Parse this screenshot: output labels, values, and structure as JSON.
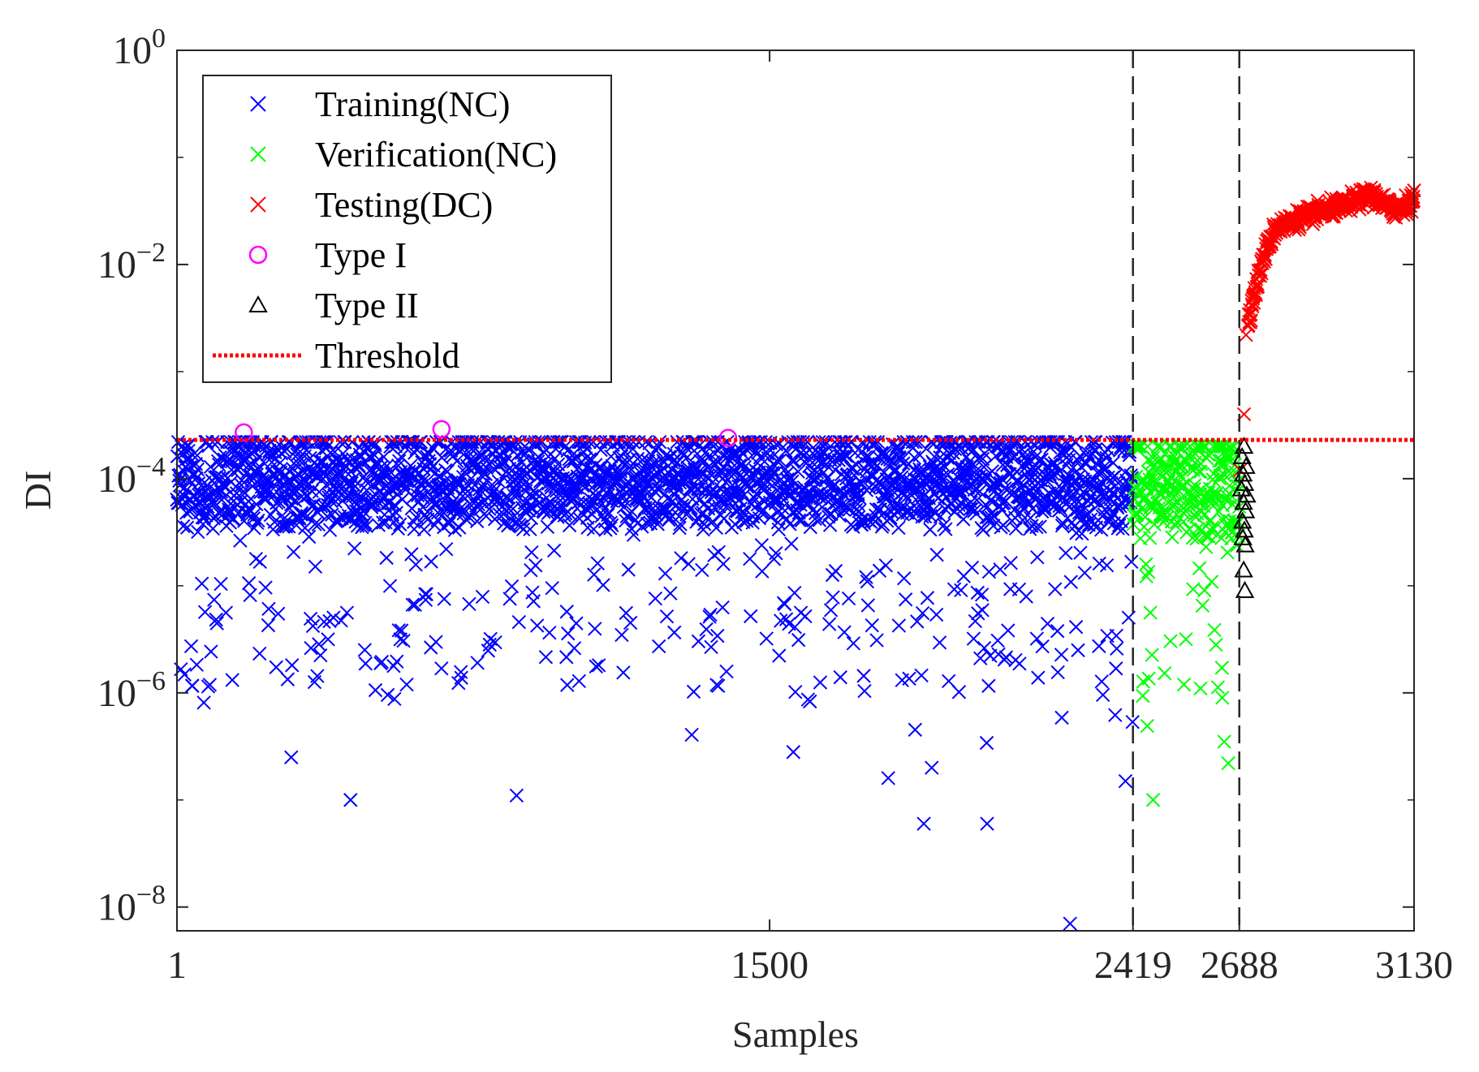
{
  "chart_data": {
    "type": "scatter",
    "title": "",
    "xlabel": "Samples",
    "ylabel": "DI",
    "yscale": "log",
    "xlim": [
      1,
      3130
    ],
    "ylim": [
      6e-09,
      1
    ],
    "xticks": [
      1,
      1500,
      2419,
      2688,
      3130
    ],
    "xtick_labels": [
      "1",
      "1500",
      "2419",
      "2688",
      "3130"
    ],
    "yticks": [
      1e-08,
      1e-06,
      0.0001,
      0.01,
      1
    ],
    "ytick_labels": [
      {
        "base": "10",
        "exp": "−8"
      },
      {
        "base": "10",
        "exp": "−6"
      },
      {
        "base": "10",
        "exp": "−4"
      },
      {
        "base": "10",
        "exp": "−2"
      },
      {
        "base": "10",
        "exp": "0"
      }
    ],
    "threshold": 0.00023,
    "boundaries": [
      2419,
      2688
    ],
    "legend": {
      "location": "top-left",
      "entries": [
        {
          "label": "Training(NC)",
          "marker": "x",
          "color": "#0000ff"
        },
        {
          "label": "Verification(NC)",
          "marker": "x",
          "color": "#00ff00"
        },
        {
          "label": "Testing(DC)",
          "marker": "x",
          "color": "#ff0000"
        },
        {
          "label": "Type I",
          "marker": "circle",
          "color": "#ff00ff"
        },
        {
          "label": "Type II",
          "marker": "triangle",
          "color": "#000000"
        },
        {
          "label": "Threshold",
          "marker": "dotted-line",
          "color": "#ff0000"
        }
      ]
    },
    "series": [
      {
        "name": "Training(NC)",
        "x_range": [
          1,
          2419
        ],
        "typical_range": [
          1e-05,
          0.00022
        ],
        "median": 8e-05,
        "min_observed": 7e-09,
        "notable_low_points": [
          {
            "x": 2260,
            "y": 7e-09
          },
          {
            "x": 440,
            "y": 1e-07
          },
          {
            "x": 860,
            "y": 1.1e-07
          },
          {
            "x": 1890,
            "y": 6e-08
          },
          {
            "x": 2050,
            "y": 6e-08
          },
          {
            "x": 2400,
            "y": 1.5e-07
          },
          {
            "x": 290,
            "y": 2.5e-07
          },
          {
            "x": 1560,
            "y": 2.8e-07
          },
          {
            "x": 1800,
            "y": 1.6e-07
          },
          {
            "x": 1910,
            "y": 2e-07
          }
        ]
      },
      {
        "name": "Verification(NC)",
        "x_range": [
          2420,
          2688
        ],
        "typical_range": [
          1e-05,
          0.0002
        ],
        "median": 7e-05,
        "notable_low_points": [
          {
            "x": 2470,
            "y": 1e-07
          },
          {
            "x": 2660,
            "y": 2.2e-07
          },
          {
            "x": 2650,
            "y": 3.5e-07
          },
          {
            "x": 2645,
            "y": 9e-07
          },
          {
            "x": 2590,
            "y": 1.1e-06
          }
        ]
      },
      {
        "name": "Testing(DC)",
        "x_range": [
          2689,
          3130
        ],
        "early_points": [
          {
            "x": 2690,
            "y": 0.00012
          },
          {
            "x": 2700,
            "y": 0.0004
          },
          {
            "x": 2705,
            "y": 0.0022
          }
        ],
        "trend": [
          {
            "x": 2710,
            "y": 0.003
          },
          {
            "x": 2730,
            "y": 0.006
          },
          {
            "x": 2750,
            "y": 0.012
          },
          {
            "x": 2780,
            "y": 0.022
          },
          {
            "x": 2850,
            "y": 0.028
          },
          {
            "x": 2950,
            "y": 0.035
          },
          {
            "x": 3020,
            "y": 0.045
          },
          {
            "x": 3080,
            "y": 0.032
          },
          {
            "x": 3130,
            "y": 0.04
          }
        ]
      },
      {
        "name": "Type I",
        "points": [
          {
            "x": 170,
            "y": 0.00027
          },
          {
            "x": 670,
            "y": 0.00029
          },
          {
            "x": 1395,
            "y": 0.00024
          }
        ]
      },
      {
        "name": "Type II",
        "x_range": [
          2689,
          2710
        ],
        "points": [
          {
            "x": 2700,
            "y": 0.0002
          },
          {
            "x": 2695,
            "y": 0.00016
          },
          {
            "x": 2705,
            "y": 0.00013
          },
          {
            "x": 2698,
            "y": 0.00011
          },
          {
            "x": 2702,
            "y": 9e-05
          },
          {
            "x": 2693,
            "y": 8e-05
          },
          {
            "x": 2707,
            "y": 7e-05
          },
          {
            "x": 2699,
            "y": 6e-05
          },
          {
            "x": 2704,
            "y": 5e-05
          },
          {
            "x": 2696,
            "y": 4e-05
          },
          {
            "x": 2701,
            "y": 3.3e-05
          },
          {
            "x": 2697,
            "y": 2.8e-05
          },
          {
            "x": 2703,
            "y": 2.4e-05
          },
          {
            "x": 2699,
            "y": 1.4e-05
          },
          {
            "x": 2702,
            "y": 9e-06
          }
        ]
      }
    ]
  }
}
